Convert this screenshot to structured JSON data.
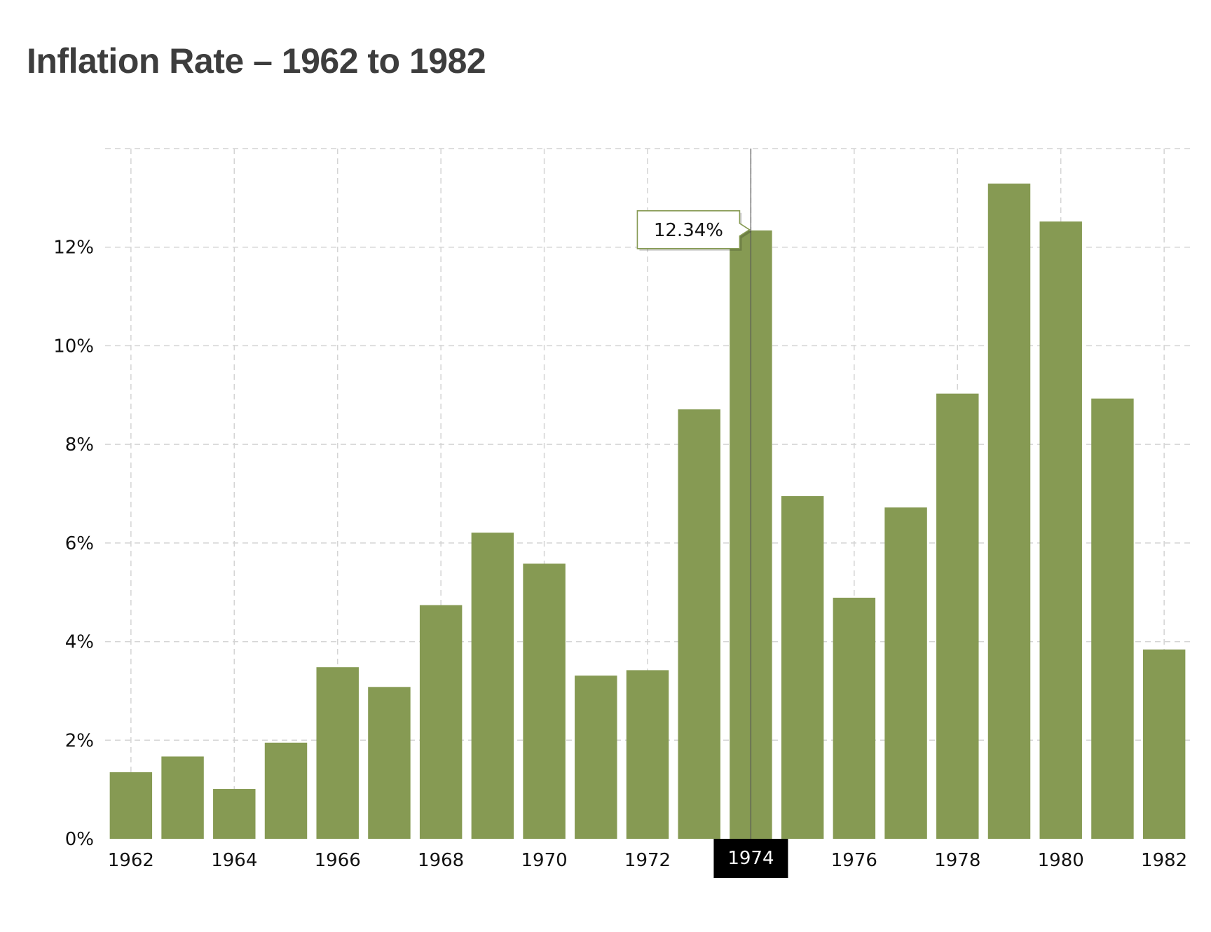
{
  "chart_data": {
    "type": "bar",
    "title": "Inflation Rate – 1962 to 1982",
    "xlabel": "",
    "ylabel": "",
    "categories": [
      "1962",
      "1963",
      "1964",
      "1965",
      "1966",
      "1967",
      "1968",
      "1969",
      "1970",
      "1971",
      "1972",
      "1973",
      "1974",
      "1975",
      "1976",
      "1977",
      "1978",
      "1979",
      "1980",
      "1981",
      "1982"
    ],
    "values": [
      1.35,
      1.67,
      1.01,
      1.95,
      3.48,
      3.08,
      4.74,
      6.21,
      5.58,
      3.31,
      3.42,
      8.71,
      12.34,
      6.95,
      4.89,
      6.72,
      9.03,
      13.29,
      12.52,
      8.93,
      3.84
    ],
    "x_ticks": [
      "1962",
      "1964",
      "1966",
      "1968",
      "1970",
      "1972",
      "1974",
      "1976",
      "1978",
      "1980",
      "1982"
    ],
    "y_ticks": [
      {
        "value": 0,
        "label": "0%"
      },
      {
        "value": 2,
        "label": "2%"
      },
      {
        "value": 4,
        "label": "4%"
      },
      {
        "value": 6,
        "label": "6%"
      },
      {
        "value": 8,
        "label": "8%"
      },
      {
        "value": 10,
        "label": "10%"
      },
      {
        "value": 12,
        "label": "12%"
      }
    ],
    "ylim": [
      0,
      14
    ],
    "grid": true,
    "bar_color": "#869a53",
    "tooltip": {
      "category": "1974",
      "label": "12.34%"
    }
  }
}
